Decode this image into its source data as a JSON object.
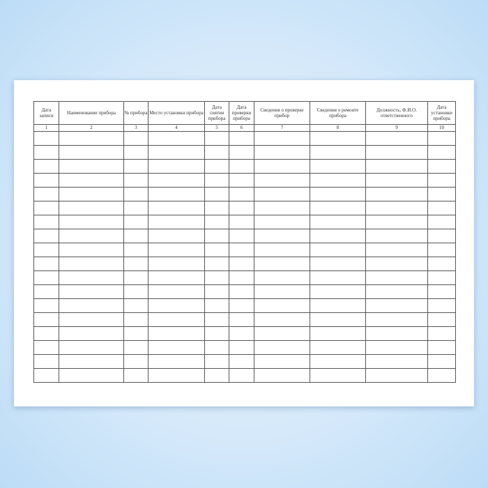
{
  "headers": [
    "Дата записи",
    "Наименование прибора",
    "№ прибора",
    "Место установки прибора",
    "Дата снятия прибора",
    "Дата проверки прибора",
    "Сведения о проверке прибор",
    "Сведения о ремонте прибора",
    "Должность, Ф.И.О. ответственного",
    "Дата установки прибора"
  ],
  "numbers": [
    "1",
    "2",
    "3",
    "4",
    "5",
    "6",
    "7",
    "8",
    "9",
    "10"
  ],
  "empty_rows": 18
}
